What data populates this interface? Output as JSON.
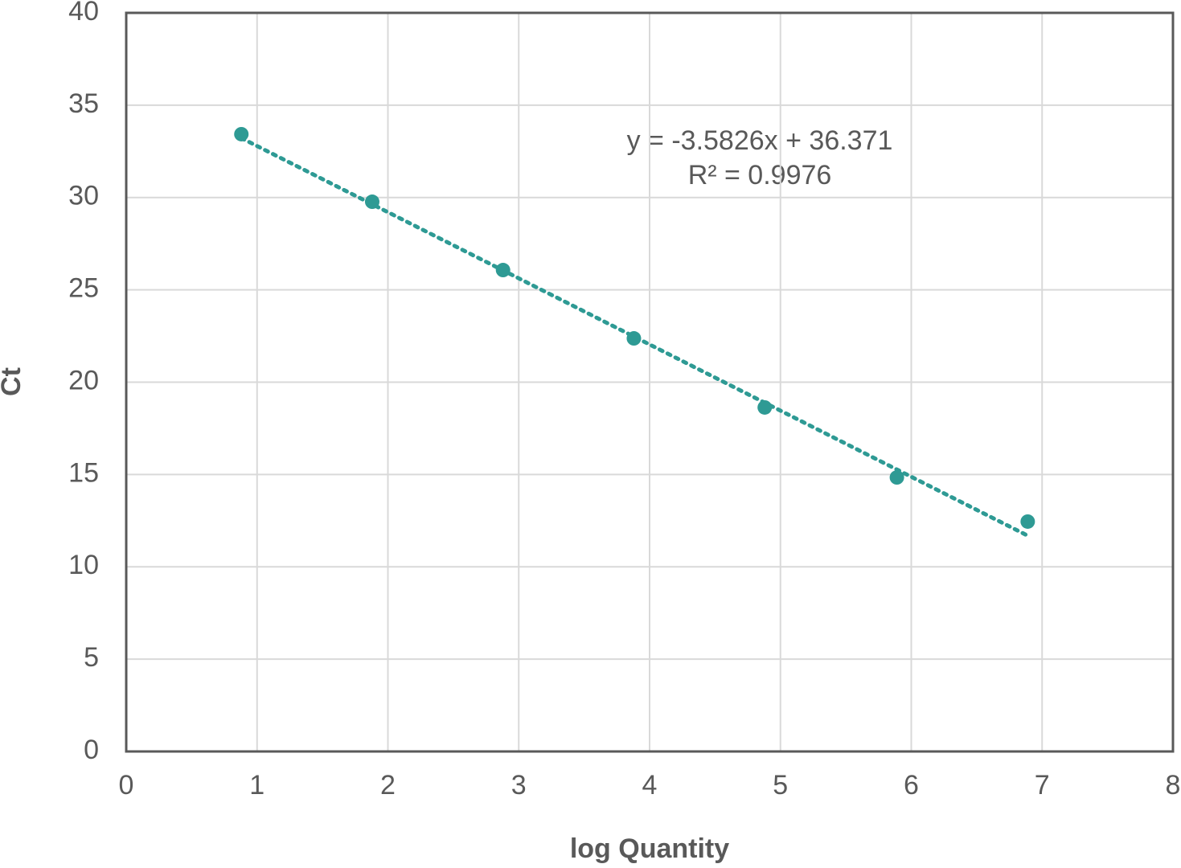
{
  "chart_data": {
    "type": "scatter",
    "x_label": "log Quantity",
    "y_label": "Ct",
    "series": [
      {
        "color": "#2e9a94",
        "x": [
          0.88,
          1.88,
          2.88,
          3.88,
          4.88,
          5.89,
          6.89
        ],
        "values": [
          33.43,
          29.77,
          26.07,
          22.37,
          18.63,
          14.84,
          12.45
        ]
      }
    ],
    "trendline": {
      "slope": -3.5826,
      "intercept": 36.371,
      "equation": "y = -3.5826x + 36.371",
      "r_squared": "R² = 0.9976",
      "style": "dotted"
    },
    "xlim": [
      0,
      8
    ],
    "xticks": [
      0,
      1,
      2,
      3,
      4,
      5,
      6,
      7,
      8
    ],
    "ylim": [
      0,
      40
    ],
    "yticks": [
      0,
      5,
      10,
      15,
      20,
      25,
      30,
      35,
      40
    ],
    "grid": true
  }
}
